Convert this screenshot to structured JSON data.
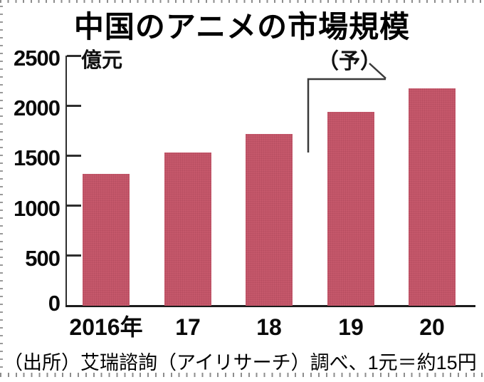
{
  "title": "中国のアニメの市場規模",
  "unit_label": "億元",
  "forecast_label": "（予）",
  "source": "（出所）艾瑞諮詢（アイリサーチ）調べ、1元＝約15円",
  "forecast_note": "予 marks years 19 and 20 as forecast",
  "colors": {
    "bar": "#c6586b",
    "axis": "#2e2e2e",
    "border_dashes": "#8d8d8d",
    "text": "#000000"
  },
  "chart_data": {
    "type": "bar",
    "categories": [
      "2016年",
      "17",
      "18",
      "19",
      "20"
    ],
    "values": [
      1320,
      1530,
      1720,
      1940,
      2170
    ],
    "forecast_categories": [
      "19",
      "20"
    ],
    "title": "中国のアニメの市場規模",
    "xlabel": "",
    "ylabel": "億元",
    "ylim": [
      0,
      2500
    ],
    "yticks": [
      0,
      500,
      1000,
      1500,
      2000,
      2500
    ],
    "legend": null,
    "grid": false,
    "annotation": "（予）"
  }
}
